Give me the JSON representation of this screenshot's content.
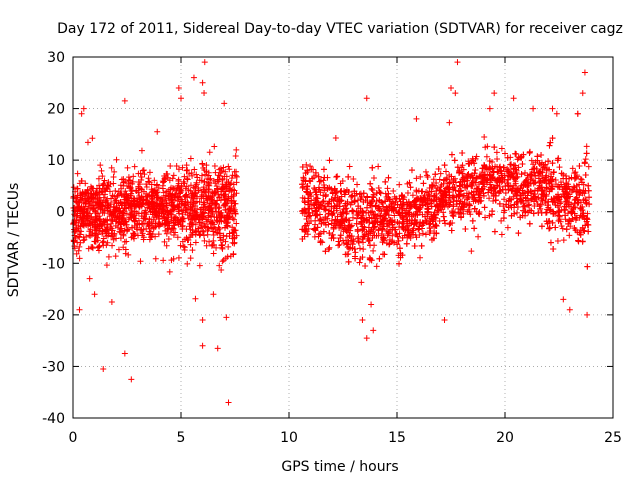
{
  "chart_data": {
    "type": "scatter",
    "title": "Day 172 of 2011, Sidereal Day-to-day VTEC variation (SDTVAR) for receiver cagz",
    "xlabel": "GPS time / hours",
    "ylabel": "SDTVAR / TECUs",
    "xlim": [
      0,
      25
    ],
    "ylim": [
      -40,
      30
    ],
    "xticks": [
      0,
      5,
      10,
      15,
      20,
      25
    ],
    "yticks": [
      -40,
      -30,
      -20,
      -10,
      0,
      10,
      20,
      30
    ],
    "grid": true,
    "marker": "+",
    "color": "#ff0000",
    "series": [
      {
        "name": "SDTVAR",
        "coverage_segments": [
          {
            "x_start": 0.0,
            "x_end": 7.6
          },
          {
            "x_start": 10.6,
            "x_end": 23.9
          }
        ],
        "bulk_trend": [
          {
            "x": 0.0,
            "y": 0,
            "spread": 6
          },
          {
            "x": 2.0,
            "y": 0,
            "spread": 6
          },
          {
            "x": 4.0,
            "y": 1,
            "spread": 5
          },
          {
            "x": 6.0,
            "y": 1,
            "spread": 7
          },
          {
            "x": 7.6,
            "y": 0,
            "spread": 8
          },
          {
            "x": 10.6,
            "y": 2,
            "spread": 6
          },
          {
            "x": 12.0,
            "y": 0,
            "spread": 6
          },
          {
            "x": 13.5,
            "y": -2,
            "spread": 7
          },
          {
            "x": 15.0,
            "y": -1,
            "spread": 5
          },
          {
            "x": 16.5,
            "y": 1,
            "spread": 5
          },
          {
            "x": 18.0,
            "y": 4,
            "spread": 5
          },
          {
            "x": 19.5,
            "y": 6,
            "spread": 6
          },
          {
            "x": 21.0,
            "y": 5,
            "spread": 5
          },
          {
            "x": 22.5,
            "y": 3,
            "spread": 6
          },
          {
            "x": 23.9,
            "y": 2,
            "spread": 8
          }
        ],
        "outliers": [
          {
            "x": 0.3,
            "y": -19
          },
          {
            "x": 1.0,
            "y": -16
          },
          {
            "x": 1.4,
            "y": -30.5
          },
          {
            "x": 2.4,
            "y": -27.5
          },
          {
            "x": 2.7,
            "y": -32.5
          },
          {
            "x": 1.8,
            "y": -17.5
          },
          {
            "x": 0.4,
            "y": 19
          },
          {
            "x": 0.5,
            "y": 20
          },
          {
            "x": 2.4,
            "y": 21.5
          },
          {
            "x": 4.9,
            "y": 24
          },
          {
            "x": 5.0,
            "y": 22
          },
          {
            "x": 5.6,
            "y": 26
          },
          {
            "x": 6.1,
            "y": 29
          },
          {
            "x": 6.0,
            "y": 25
          },
          {
            "x": 6.0,
            "y": -21
          },
          {
            "x": 6.0,
            "y": -26
          },
          {
            "x": 6.7,
            "y": -26.5
          },
          {
            "x": 7.2,
            "y": -37
          },
          {
            "x": 7.1,
            "y": -20.5
          },
          {
            "x": 7.0,
            "y": 21
          },
          {
            "x": 6.5,
            "y": -16
          },
          {
            "x": 13.4,
            "y": -21
          },
          {
            "x": 13.6,
            "y": -24.5
          },
          {
            "x": 13.9,
            "y": -23
          },
          {
            "x": 13.6,
            "y": 22
          },
          {
            "x": 13.8,
            "y": -18
          },
          {
            "x": 17.2,
            "y": -21
          },
          {
            "x": 15.9,
            "y": 18
          },
          {
            "x": 17.8,
            "y": 29
          },
          {
            "x": 17.5,
            "y": 24
          },
          {
            "x": 17.7,
            "y": 23
          },
          {
            "x": 19.5,
            "y": 23
          },
          {
            "x": 19.3,
            "y": 20
          },
          {
            "x": 20.4,
            "y": 22
          },
          {
            "x": 21.3,
            "y": 20
          },
          {
            "x": 22.2,
            "y": 20
          },
          {
            "x": 22.4,
            "y": 19
          },
          {
            "x": 23.0,
            "y": -19
          },
          {
            "x": 23.6,
            "y": 23
          },
          {
            "x": 23.7,
            "y": 27
          },
          {
            "x": 23.8,
            "y": -20
          },
          {
            "x": 22.7,
            "y": -17
          }
        ]
      }
    ]
  }
}
